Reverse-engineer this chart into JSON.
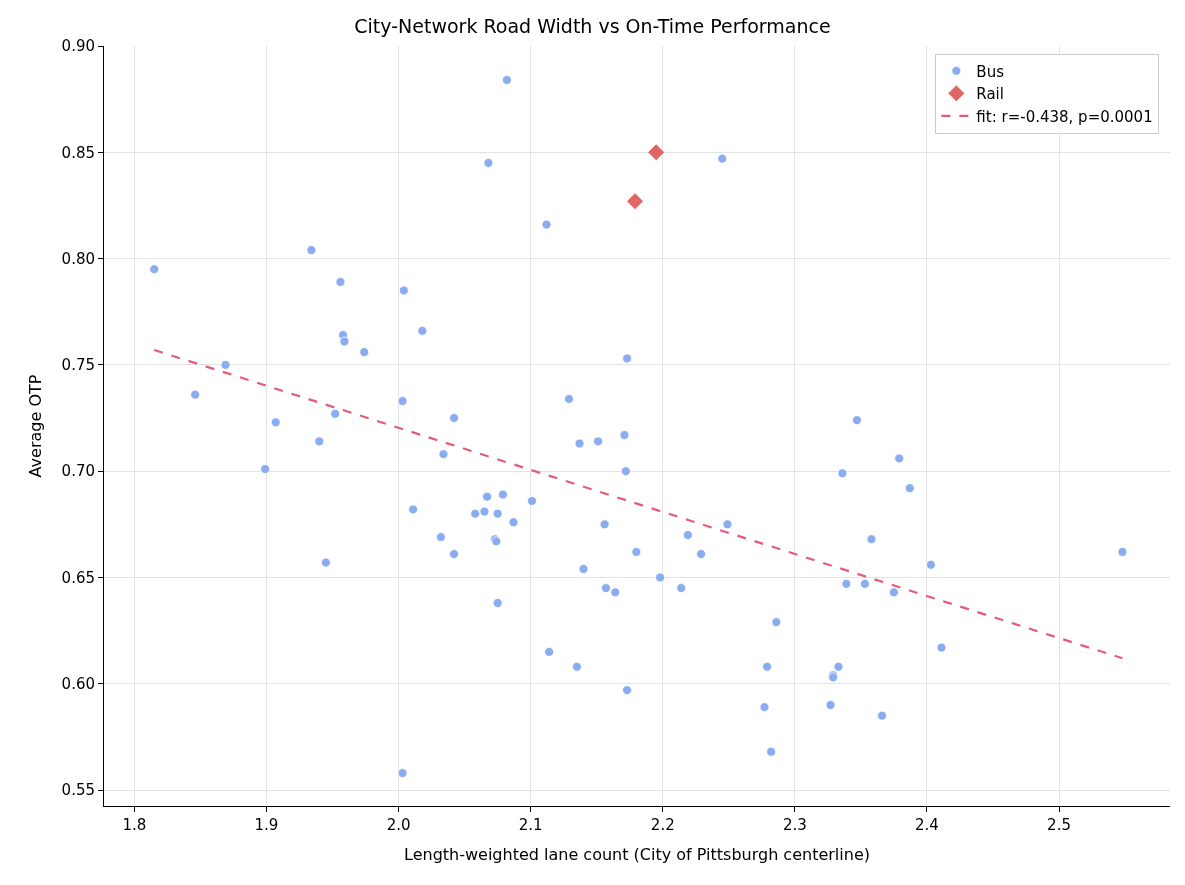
{
  "chart_data": {
    "type": "scatter",
    "title": "City-Network Road Width vs On-Time Performance",
    "xlabel": "Length-weighted lane count (City of Pittsburgh centerline)",
    "ylabel": "Average OTP",
    "xlim": [
      1.777,
      2.584
    ],
    "ylim": [
      0.5425,
      0.9
    ],
    "xticks": [
      {
        "value": 1.8,
        "label": "1.8"
      },
      {
        "value": 1.9,
        "label": "1.9"
      },
      {
        "value": 2.0,
        "label": "2.0"
      },
      {
        "value": 2.1,
        "label": "2.1"
      },
      {
        "value": 2.2,
        "label": "2.2"
      },
      {
        "value": 2.3,
        "label": "2.3"
      },
      {
        "value": 2.4,
        "label": "2.4"
      },
      {
        "value": 2.5,
        "label": "2.5"
      }
    ],
    "yticks": [
      {
        "value": 0.55,
        "label": "0.55"
      },
      {
        "value": 0.6,
        "label": "0.60"
      },
      {
        "value": 0.65,
        "label": "0.65"
      },
      {
        "value": 0.7,
        "label": "0.70"
      },
      {
        "value": 0.75,
        "label": "0.75"
      },
      {
        "value": 0.8,
        "label": "0.80"
      },
      {
        "value": 0.85,
        "label": "0.85"
      },
      {
        "value": 0.9,
        "label": "0.90"
      }
    ],
    "grid": true,
    "legend": "top right",
    "series": [
      {
        "name": "Bus",
        "marker": "circle",
        "color": "#8aacf0",
        "x": [
          2.082,
          2.068,
          2.112,
          1.815,
          1.934,
          1.956,
          2.004,
          2.018,
          1.958,
          1.959,
          1.974,
          2.173,
          1.869,
          1.846,
          2.129,
          2.003,
          1.952,
          2.042,
          1.907,
          2.245,
          2.347,
          1.94,
          1.899,
          2.137,
          2.151,
          2.171,
          2.034,
          2.172,
          2.011,
          2.067,
          2.079,
          2.058,
          2.065,
          2.075,
          2.087,
          2.101,
          2.156,
          2.032,
          2.073,
          2.074,
          2.042,
          1.945,
          2.18,
          2.14,
          2.157,
          2.164,
          2.075,
          2.114,
          2.135,
          2.173,
          2.003,
          2.379,
          2.336,
          2.387,
          2.249,
          2.219,
          2.229,
          2.358,
          2.403,
          2.548,
          2.198,
          2.214,
          2.339,
          2.353,
          2.375,
          2.286,
          2.411,
          2.279,
          2.333,
          2.329,
          2.329,
          2.277,
          2.327,
          2.366,
          2.282
        ],
        "values": [
          0.884,
          0.845,
          0.816,
          0.795,
          0.804,
          0.789,
          0.785,
          0.766,
          0.764,
          0.761,
          0.756,
          0.753,
          0.75,
          0.736,
          0.734,
          0.733,
          0.727,
          0.725,
          0.723,
          0.847,
          0.724,
          0.714,
          0.701,
          0.713,
          0.714,
          0.717,
          0.708,
          0.7,
          0.682,
          0.688,
          0.689,
          0.68,
          0.681,
          0.68,
          0.676,
          0.686,
          0.675,
          0.669,
          0.668,
          0.667,
          0.661,
          0.657,
          0.662,
          0.654,
          0.645,
          0.643,
          0.638,
          0.615,
          0.608,
          0.597,
          0.558,
          0.706,
          0.699,
          0.692,
          0.675,
          0.67,
          0.661,
          0.668,
          0.656,
          0.662,
          0.65,
          0.645,
          0.647,
          0.647,
          0.643,
          0.629,
          0.617,
          0.608,
          0.608,
          0.604,
          0.603,
          0.589,
          0.59,
          0.585,
          0.568
        ]
      },
      {
        "name": "Rail",
        "marker": "diamond",
        "color": "#e06666",
        "x": [
          2.179,
          2.195
        ],
        "values": [
          0.827,
          0.85
        ]
      },
      {
        "name": "fit: r=-0.438, p=0.0001",
        "type": "line",
        "line_style": "dashed",
        "color": "#e45a7a",
        "x": [
          1.815,
          2.548
        ],
        "values": [
          0.757,
          0.612
        ]
      }
    ]
  }
}
